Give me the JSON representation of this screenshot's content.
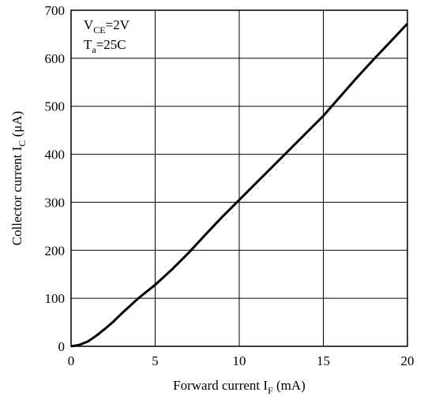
{
  "chart_data": {
    "type": "line",
    "annotations": {
      "vce": {
        "main": "V",
        "sub": "CE",
        "rest": "=2V"
      },
      "ta": {
        "main": "T",
        "sub": "a",
        "rest": "=25C"
      }
    },
    "xlabel": {
      "main": "Forward current I",
      "sub": "F",
      "rest": " (mA)"
    },
    "ylabel": {
      "main": "Collector current I",
      "sub": "C",
      "rest": " (μA)"
    },
    "xlim": [
      0,
      20
    ],
    "ylim": [
      0,
      700
    ],
    "xticks": [
      "0",
      "5",
      "10",
      "15",
      "20"
    ],
    "yticks": [
      "0",
      "100",
      "200",
      "300",
      "400",
      "500",
      "600",
      "700"
    ],
    "grid": true,
    "series": [
      {
        "x": [
          0,
          0.5,
          1,
          1.5,
          2,
          2.5,
          3,
          4,
          5,
          6,
          7,
          8,
          9,
          10,
          11,
          12,
          13,
          14,
          15,
          16,
          17,
          18,
          19,
          20
        ],
        "y": [
          0,
          3,
          10,
          22,
          36,
          51,
          68,
          100,
          128,
          160,
          195,
          233,
          270,
          305,
          340,
          375,
          410,
          445,
          480,
          520,
          560,
          598,
          635,
          672
        ]
      }
    ]
  }
}
